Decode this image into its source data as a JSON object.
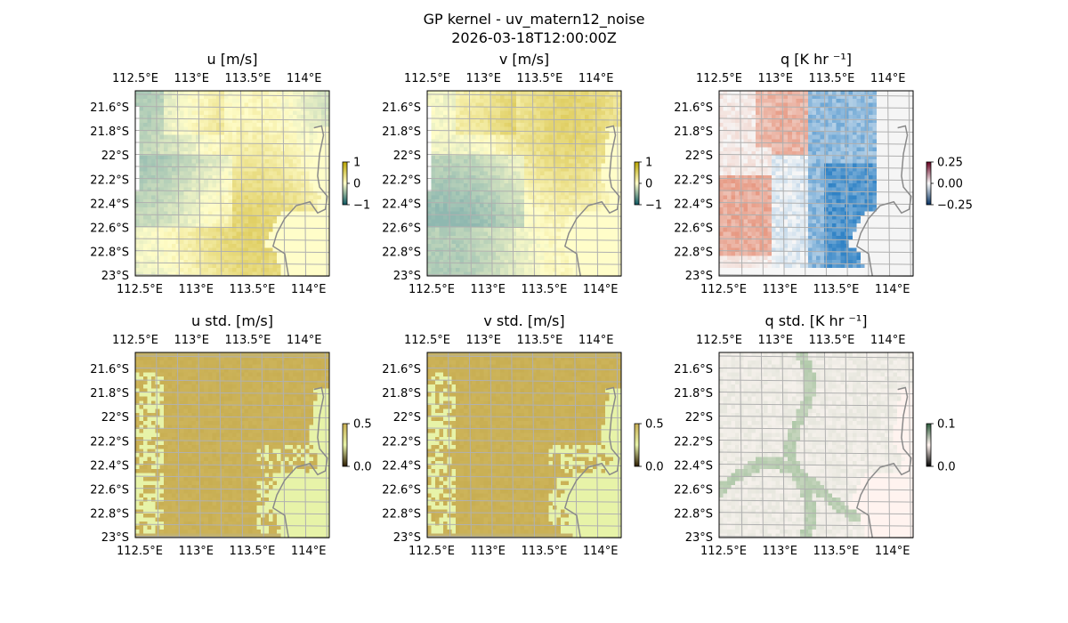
{
  "figure": {
    "title_line1": "GP kernel - uv_matern12_noise",
    "title_line2": "2026-03-18T12:00:00Z"
  },
  "map_ticks": {
    "lon": [
      "112.5°E",
      "113°E",
      "113.5°E",
      "114°E"
    ],
    "lat": [
      "21.6°S",
      "21.8°S",
      "22°S",
      "22.2°S",
      "22.4°S",
      "22.6°S",
      "22.8°S",
      "23°S"
    ]
  },
  "colors": {
    "ocean": "#9db5dd",
    "coast": "#8a8a8a",
    "grid": "#b0b0b0",
    "land_uv": "#fffdc9",
    "land_q": "#f5f5f5",
    "land_std": "#e7f3a8",
    "std_field": "#c8ae52"
  },
  "panels": [
    {
      "id": "u",
      "title": "u [m/s]",
      "kind": "uv",
      "seed": 11,
      "colorbar": {
        "ticks": [
          "1",
          "0",
          "−1"
        ],
        "colors": [
          "#b9a400",
          "#fffdc9",
          "#0a5560"
        ]
      }
    },
    {
      "id": "v",
      "title": "v [m/s]",
      "kind": "uv",
      "seed": 23,
      "colorbar": {
        "ticks": [
          "1",
          "0",
          "−1"
        ],
        "colors": [
          "#b9a400",
          "#fffdc9",
          "#0a5560"
        ]
      }
    },
    {
      "id": "q",
      "title": "q [K hr ⁻¹]",
      "kind": "q",
      "seed": 37,
      "colorbar": {
        "ticks": [
          "0.25",
          "0.00",
          "−0.25"
        ],
        "colors": [
          "#67001f",
          "#f7f7f7",
          "#053061"
        ]
      }
    },
    {
      "id": "ustd",
      "title": "u std. [m/s]",
      "kind": "std",
      "seed": 41,
      "colorbar": {
        "ticks": [
          "0.5",
          "0.0"
        ],
        "colors": [
          "#c8ae52",
          "#e7f3a8",
          "#2b1b00"
        ]
      }
    },
    {
      "id": "vstd",
      "title": "v std. [m/s]",
      "kind": "std",
      "seed": 53,
      "colorbar": {
        "ticks": [
          "0.5",
          "0.0"
        ],
        "colors": [
          "#c8ae52",
          "#e7f3a8",
          "#2b1b00"
        ]
      }
    },
    {
      "id": "qstd",
      "title": "q std. [K hr ⁻¹]",
      "kind": "qstd",
      "seed": 67,
      "colorbar": {
        "ticks": [
          "0.1",
          "0.0"
        ],
        "colors": [
          "#2a5a3a",
          "#fff3ef",
          "#000000"
        ]
      }
    }
  ]
}
